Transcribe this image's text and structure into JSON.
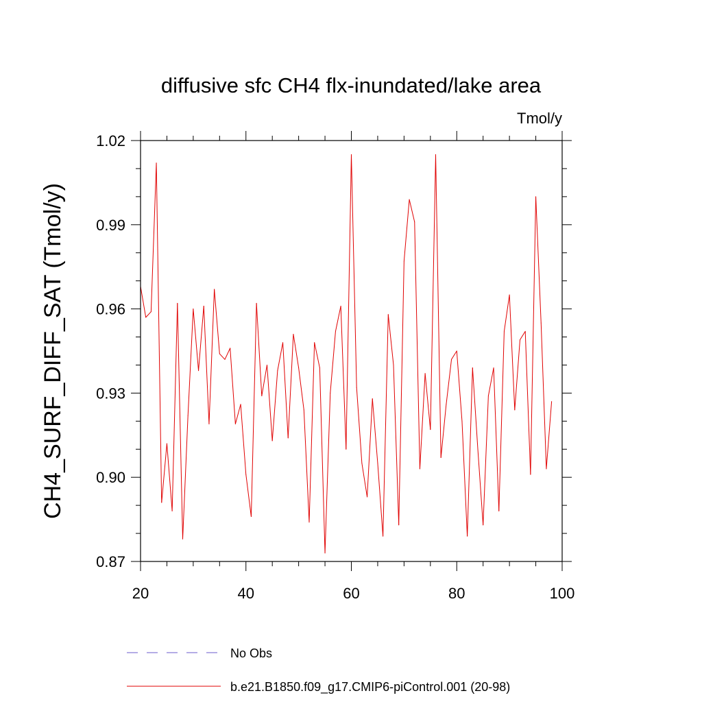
{
  "chart_data": {
    "type": "line",
    "title": "diffusive sfc CH4 flx-inundated/lake area",
    "units_label": "Tmol/y",
    "ylabel": "CH4_SURF_DIFF_SAT  (Tmol/y)",
    "xlabel": "",
    "xlim": [
      20,
      100
    ],
    "ylim": [
      0.87,
      1.02
    ],
    "xticks": [
      20,
      40,
      60,
      80,
      100
    ],
    "xtick_labels": [
      "20",
      "40",
      "60",
      "80",
      "100"
    ],
    "yticks": [
      0.87,
      0.9,
      0.93,
      0.96,
      0.99,
      1.02
    ],
    "ytick_labels": [
      "0.87",
      "0.90",
      "0.93",
      "0.96",
      "0.99",
      "1.02"
    ],
    "grid": false,
    "legend_position": "bottom",
    "series": [
      {
        "name": "No Obs",
        "color": "#6a5acd",
        "style": "dashed",
        "x": [],
        "values": []
      },
      {
        "name": "b.e21.B1850.f09_g17.CMIP6-piControl.001 (20-98)",
        "color": "#e00000",
        "style": "solid",
        "x": [
          20,
          21,
          22,
          23,
          24,
          25,
          26,
          27,
          28,
          29,
          30,
          31,
          32,
          33,
          34,
          35,
          36,
          37,
          38,
          39,
          40,
          41,
          42,
          43,
          44,
          45,
          46,
          47,
          48,
          49,
          50,
          51,
          52,
          53,
          54,
          55,
          56,
          57,
          58,
          59,
          60,
          61,
          62,
          63,
          64,
          65,
          66,
          67,
          68,
          69,
          70,
          71,
          72,
          73,
          74,
          75,
          76,
          77,
          78,
          79,
          80,
          81,
          82,
          83,
          84,
          85,
          86,
          87,
          88,
          89,
          90,
          91,
          92,
          93,
          94,
          95,
          96,
          97,
          98
        ],
        "values": [
          0.968,
          0.957,
          0.959,
          1.012,
          0.891,
          0.912,
          0.888,
          0.962,
          0.878,
          0.922,
          0.96,
          0.938,
          0.961,
          0.919,
          0.967,
          0.944,
          0.942,
          0.946,
          0.919,
          0.926,
          0.901,
          0.886,
          0.962,
          0.929,
          0.94,
          0.913,
          0.938,
          0.948,
          0.914,
          0.951,
          0.939,
          0.924,
          0.884,
          0.948,
          0.939,
          0.873,
          0.93,
          0.952,
          0.961,
          0.91,
          1.015,
          0.932,
          0.905,
          0.893,
          0.928,
          0.905,
          0.879,
          0.958,
          0.94,
          0.883,
          0.977,
          0.999,
          0.991,
          0.903,
          0.937,
          0.917,
          1.015,
          0.907,
          0.926,
          0.942,
          0.945,
          0.92,
          0.879,
          0.939,
          0.91,
          0.883,
          0.929,
          0.939,
          0.888,
          0.952,
          0.965,
          0.924,
          0.949,
          0.952,
          0.901,
          1.0,
          0.955,
          0.903,
          0.927
        ]
      }
    ]
  }
}
